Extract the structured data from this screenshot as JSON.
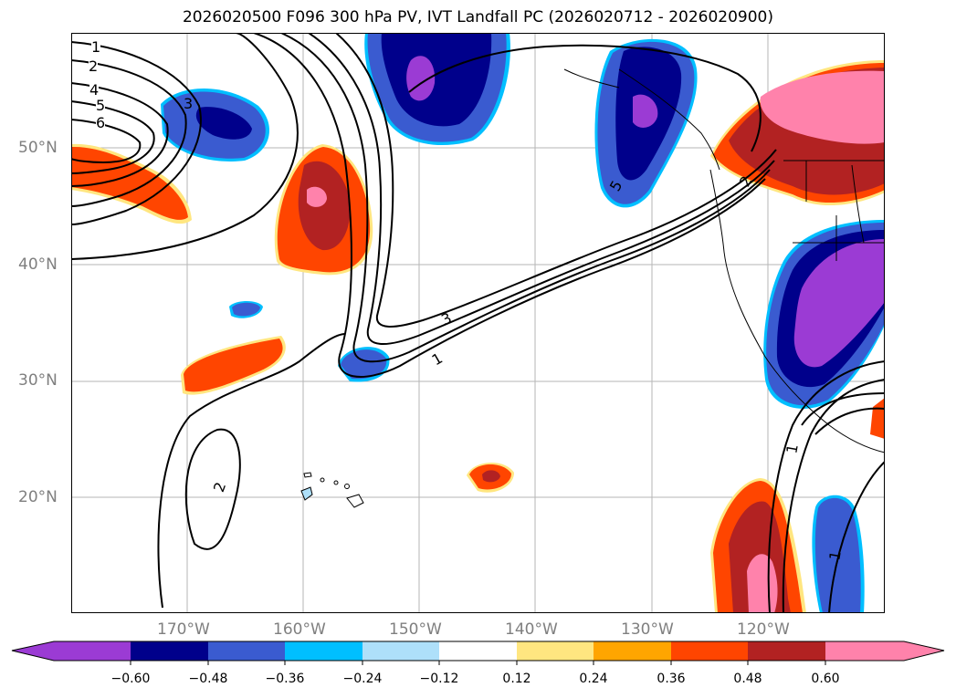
{
  "title": "2026020500 F096 300 hPa PV, IVT Landfall PC (2026020712 - 2026020900)",
  "lat_labels": [
    "50°N",
    "40°N",
    "30°N",
    "20°N"
  ],
  "lon_labels": [
    "170°W",
    "160°W",
    "150°W",
    "140°W",
    "130°W",
    "120°W"
  ],
  "contour_labels": {
    "west": [
      "1",
      "2",
      "4",
      "5",
      "6",
      "3"
    ],
    "central": [
      "3",
      "1"
    ],
    "south": [
      "2"
    ],
    "northeast": [
      "5",
      "2"
    ],
    "southeast": [
      "1",
      "1"
    ]
  },
  "colorbar": {
    "tick_labels": [
      "−0.60",
      "−0.48",
      "−0.36",
      "−0.24",
      "−0.12",
      "0.12",
      "0.24",
      "0.36",
      "0.48",
      "0.60"
    ],
    "colors": [
      "#9b3bd4",
      "#00008b",
      "#3a5bd0",
      "#00bfff",
      "#aee0fa",
      "#ffffff",
      "#ffe680",
      "#ffa500",
      "#ff4500",
      "#b22222",
      "#ff82ab"
    ]
  }
}
